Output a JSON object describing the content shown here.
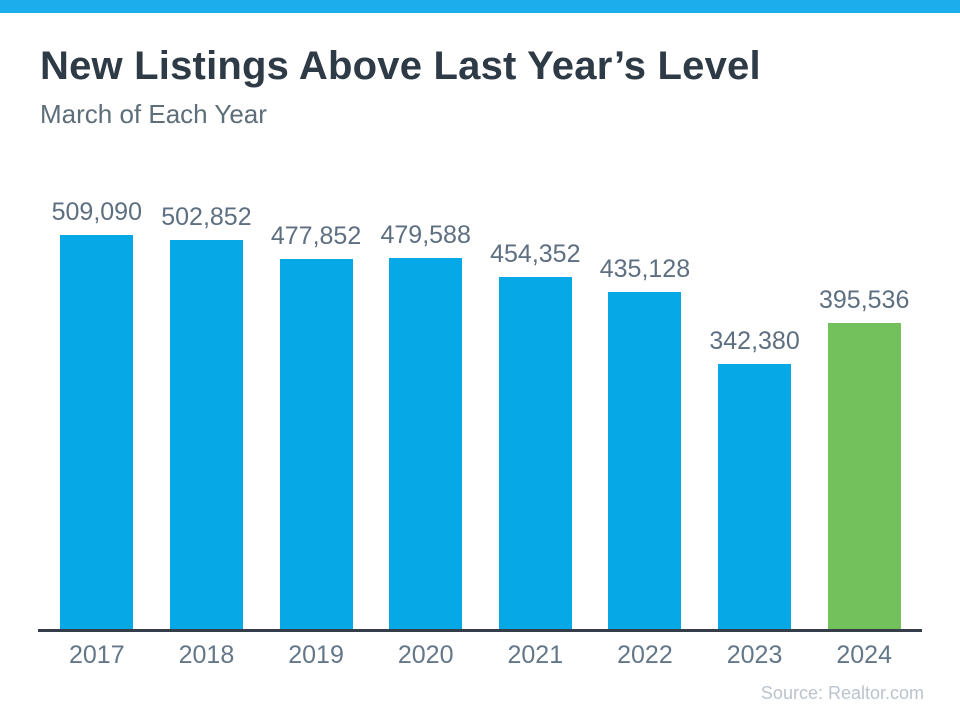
{
  "page": {
    "title": "New Listings Above Last Year’s Level",
    "subtitle": "March of Each Year",
    "source": "Source: Realtor.com"
  },
  "colors": {
    "top_bar": "#1CAEEC",
    "bar_blue": "#06A9E6",
    "bar_green": "#72C15C",
    "title_text": "#2E3B47",
    "subtitle_text": "#5D6E79",
    "label_text": "#5D6F80",
    "year_text": "#647789",
    "axis_line": "#353E48",
    "source_text": "#BBC3CD"
  },
  "chart_data": {
    "type": "bar",
    "title": "New Listings Above Last Year’s Level",
    "subtitle": "March of Each Year",
    "categories": [
      "2017",
      "2018",
      "2019",
      "2020",
      "2021",
      "2022",
      "2023",
      "2024"
    ],
    "values": [
      509090,
      502852,
      477852,
      479588,
      454352,
      435128,
      342380,
      395536
    ],
    "value_labels": [
      "509,090",
      "502,852",
      "477,852",
      "479,588",
      "454,352",
      "435,128",
      "342,380",
      "395,536"
    ],
    "bar_colors": [
      "blue",
      "blue",
      "blue",
      "blue",
      "blue",
      "blue",
      "blue",
      "green"
    ],
    "ylim": [
      0,
      509090
    ],
    "xlabel": "",
    "ylabel": "",
    "grid": false,
    "legend": false,
    "source": "Source: Realtor.com"
  }
}
